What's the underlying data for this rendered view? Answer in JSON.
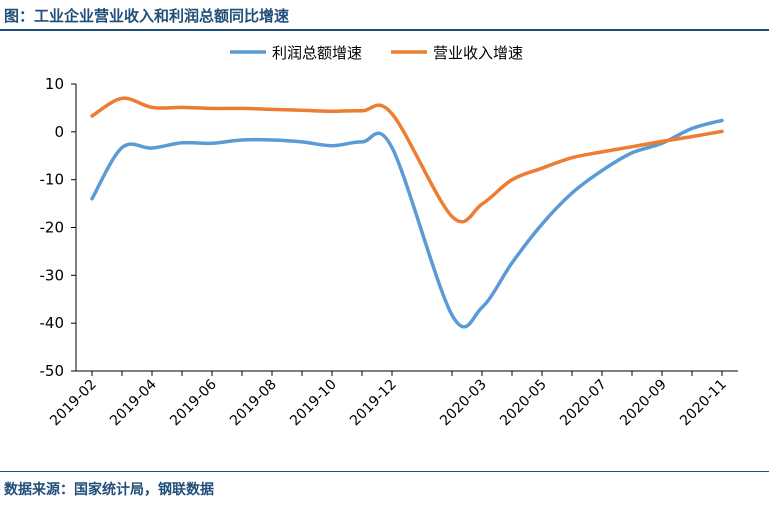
{
  "header": {
    "title": "图：工业企业营业收入和利润总额同比增速"
  },
  "footer": {
    "source": "数据来源：国家统计局，钢联数据"
  },
  "chart_data": {
    "type": "line",
    "title": "",
    "xlabel": "",
    "ylabel": "",
    "ylim": [
      -50,
      10
    ],
    "yticks": [
      10,
      0,
      -10,
      -20,
      -30,
      -40,
      -50
    ],
    "grid": false,
    "legend": "top-center",
    "x_tick_labels": [
      "2019-02",
      "2019-04",
      "2019-06",
      "2019-08",
      "2019-10",
      "2019-12",
      "2020-03",
      "2020-05",
      "2020-07",
      "2020-09",
      "2020-11"
    ],
    "x": [
      "2019-02",
      "2019-03",
      "2019-04",
      "2019-05",
      "2019-06",
      "2019-07",
      "2019-08",
      "2019-09",
      "2019-10",
      "2019-11",
      "2019-12",
      "2020-02",
      "2020-03",
      "2020-04",
      "2020-05",
      "2020-06",
      "2020-07",
      "2020-08",
      "2020-09",
      "2020-10",
      "2020-11"
    ],
    "series": [
      {
        "name": "利润总额增速",
        "color": "#5b9bd5",
        "values": [
          -14.0,
          -3.3,
          -3.4,
          -2.3,
          -2.4,
          -1.7,
          -1.7,
          -2.1,
          -2.9,
          -2.1,
          -3.3,
          -38.3,
          -36.7,
          -27.4,
          -19.3,
          -12.8,
          -8.1,
          -4.4,
          -2.4,
          0.7,
          2.4
        ]
      },
      {
        "name": "营业收入增速",
        "color": "#ed7d31",
        "values": [
          3.3,
          7.0,
          5.1,
          5.1,
          4.9,
          4.9,
          4.7,
          4.5,
          4.3,
          4.4,
          3.8,
          -17.7,
          -15.1,
          -10.0,
          -7.6,
          -5.4,
          -4.2,
          -3.1,
          -2.0,
          -1.0,
          0.1
        ]
      }
    ]
  }
}
